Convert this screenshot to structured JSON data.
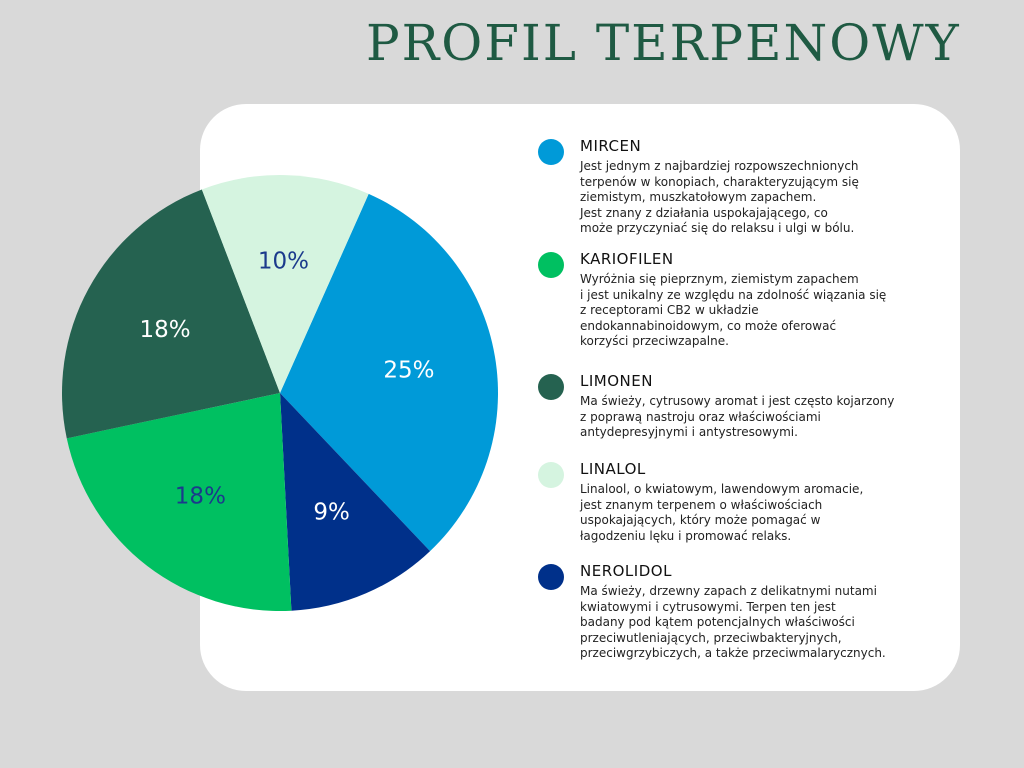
{
  "title": "PROFIL TERPENOWY",
  "chart_data": {
    "type": "pie",
    "title": "PROFIL TERPENOWY",
    "slices": [
      {
        "name": "MIRCEN",
        "value": 25,
        "label": "25%",
        "color": "#009ad8",
        "label_color": "#ffffff"
      },
      {
        "name": "NEROLIDOL",
        "value": 9,
        "label": "9%",
        "color": "#00308a",
        "label_color": "#ffffff"
      },
      {
        "name": "KARIOFILEN",
        "value": 18,
        "label": "18%",
        "color": "#00c061",
        "label_color": "#1b3a8c"
      },
      {
        "name": "LIMONEN",
        "value": 18,
        "label": "18%",
        "color": "#256250",
        "label_color": "#ffffff"
      },
      {
        "name": "LINALOL",
        "value": 10,
        "label": "10%",
        "color": "#d5f4e0",
        "label_color": "#1b3a8c"
      }
    ]
  },
  "legend": [
    {
      "name": "MIRCEN",
      "color": "#009ad8",
      "description": "Jest jednym z najbardziej rozpowszechnionych\nterpenów w konopiach, charakteryzującym się\nziemistym, muszkatołowym zapachem.\nJest znany z działania uspokajającego, co\nmoże przyczyniać się do relaksu i ulgi w bólu."
    },
    {
      "name": "KARIOFILEN",
      "color": "#00c061",
      "description": "Wyróżnia się pieprznym, ziemistym zapachem\ni jest unikalny ze względu na zdolność wiązania się\nz receptorami CB2 w układzie\nendokannabinoidowym, co może oferować\nkorzyści przeciwzapalne."
    },
    {
      "name": "LIMONEN",
      "color": "#256250",
      "description": "Ma świeży, cytrusowy aromat i jest często kojarzony\nz poprawą nastroju oraz właściwościami\nantydepresyjnymi i antystresowymi."
    },
    {
      "name": "LINALOL",
      "color": "#d5f4e0",
      "description": "Linalool, o kwiatowym, lawendowym aromacie,\njest znanym terpenem o właściwościach\nuspokajających, który może pomagać w\nłagodzeniu lęku i promować relaks."
    },
    {
      "name": "NEROLIDOL",
      "color": "#00308a",
      "description": "Ma świeży, drzewny zapach z delikatnymi nutami\nkwiatowymi i cytrusowymi. Terpen ten jest\nbadany pod kątem potencjalnych właściwości\nprzeciwutleniających, przeciwbakteryjnych,\nprzeciwgrzybiczych, a także przeciwmalarycznych."
    }
  ]
}
